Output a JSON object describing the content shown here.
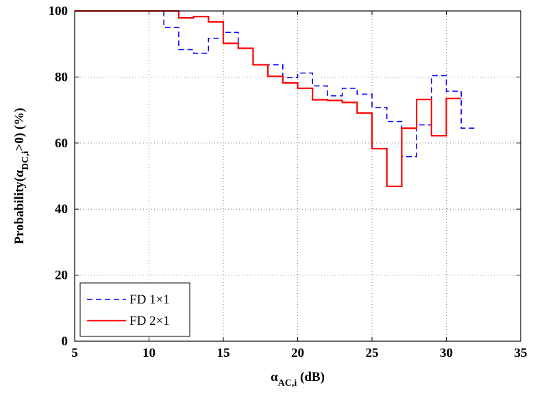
{
  "chart_data": {
    "type": "line",
    "title": "",
    "xlabel": {
      "base": "α",
      "subscript": "AC,i",
      "suffix": " (dB)"
    },
    "ylabel": {
      "prefix": "Probability(",
      "base": "α",
      "subscript": "DC,i",
      "suffix": ">0) (%)"
    },
    "xlim": [
      5,
      35
    ],
    "ylim": [
      0,
      100
    ],
    "xticks": [
      5,
      10,
      15,
      20,
      25,
      30,
      35
    ],
    "yticks": [
      0,
      20,
      40,
      60,
      80,
      100
    ],
    "grid": true,
    "legend_position": "bottom-left",
    "step": "post",
    "series": [
      {
        "name": "FD 1×1",
        "color": "#0000ff",
        "line_style": "dashed",
        "x": [
          5,
          11,
          12,
          13,
          14,
          15,
          16,
          17,
          18,
          19,
          20,
          21,
          22,
          23,
          24,
          25,
          26,
          27,
          28,
          29,
          30,
          31
        ],
        "y": [
          100,
          95,
          88.3,
          87.2,
          91.7,
          93.5,
          88.7,
          83.7,
          83.7,
          79.8,
          81.2,
          77.3,
          74.3,
          76.6,
          74.8,
          70.8,
          66.5,
          55.9,
          65.5,
          80.4,
          75.7,
          64.5
        ]
      },
      {
        "name": "FD 2×1",
        "color": "#ff0000",
        "line_style": "solid",
        "x": [
          5,
          12,
          13,
          14,
          15,
          16,
          17,
          18,
          19,
          20,
          21,
          22,
          23,
          24,
          25,
          26,
          27,
          28,
          29,
          30
        ],
        "y": [
          100,
          97.9,
          98.3,
          96.7,
          90.2,
          88.7,
          83.7,
          80.2,
          78.2,
          76.6,
          73.1,
          72.9,
          72.3,
          69.1,
          58.3,
          46.9,
          64.5,
          73.2,
          62.2,
          73.5
        ]
      }
    ]
  }
}
